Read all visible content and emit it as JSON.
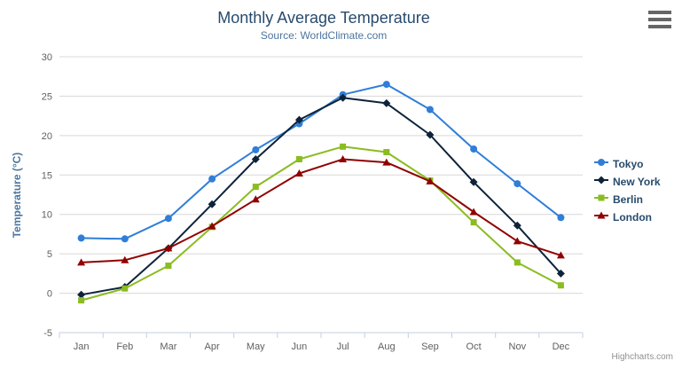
{
  "header": {
    "title": "Monthly Average Temperature",
    "subtitle": "Source: WorldClimate.com"
  },
  "y_axis": {
    "title": "Temperature (°C)",
    "tick_labels": [
      "-5",
      "0",
      "5",
      "10",
      "15",
      "20",
      "25",
      "30"
    ]
  },
  "credits": {
    "label": "Highcharts.com"
  },
  "export_menu": {
    "icon": "hamburger-icon"
  },
  "colors": {
    "title_text": "#274b6d",
    "subtitle_text": "#4d759e",
    "axis_title_text": "#4d759e",
    "axis_label_text": "#606060",
    "axis_line": "#c0d0e0",
    "gridline": "#d8d8d8",
    "legend_text": "#274b6d",
    "credits_text": "#909090",
    "background": "#ffffff"
  },
  "chart_data": {
    "type": "line",
    "title": "Monthly Average Temperature",
    "subtitle": "Source: WorldClimate.com",
    "xlabel": "",
    "ylabel": "Temperature (°C)",
    "ylim": [
      -5,
      30
    ],
    "ytick_step": 5,
    "grid": true,
    "legend_position": "right",
    "categories": [
      "Jan",
      "Feb",
      "Mar",
      "Apr",
      "May",
      "Jun",
      "Jul",
      "Aug",
      "Sep",
      "Oct",
      "Nov",
      "Dec"
    ],
    "series": [
      {
        "name": "Tokyo",
        "color": "#2f7ed8",
        "symbol": "circle",
        "values": [
          7.0,
          6.9,
          9.5,
          14.5,
          18.2,
          21.5,
          25.2,
          26.5,
          23.3,
          18.3,
          13.9,
          9.6
        ]
      },
      {
        "name": "New York",
        "color": "#0d233a",
        "symbol": "diamond",
        "values": [
          -0.2,
          0.8,
          5.7,
          11.3,
          17.0,
          22.0,
          24.8,
          24.1,
          20.1,
          14.1,
          8.6,
          2.5
        ]
      },
      {
        "name": "Berlin",
        "color": "#8bbc21",
        "symbol": "square",
        "values": [
          -0.9,
          0.6,
          3.5,
          8.4,
          13.5,
          17.0,
          18.6,
          17.9,
          14.3,
          9.0,
          3.9,
          1.0
        ]
      },
      {
        "name": "London",
        "color": "#910000",
        "symbol": "triangle",
        "values": [
          3.9,
          4.2,
          5.7,
          8.5,
          11.9,
          15.2,
          17.0,
          16.6,
          14.2,
          10.3,
          6.6,
          4.8
        ]
      }
    ]
  }
}
